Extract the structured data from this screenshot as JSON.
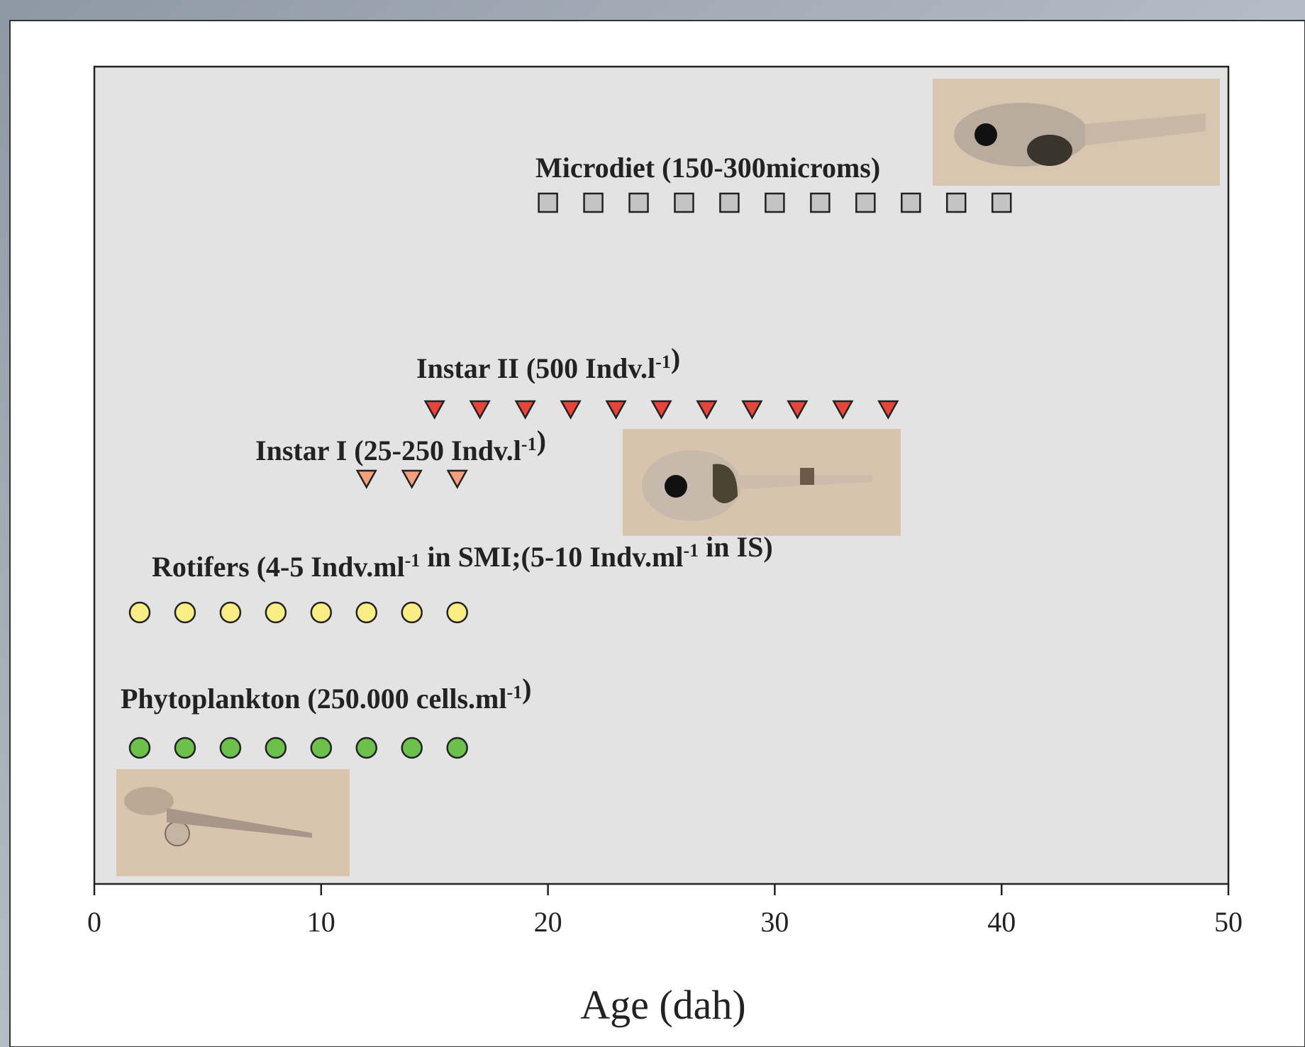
{
  "chart_data": {
    "type": "schedule",
    "x_label": "Age (dah)",
    "xlim": [
      0,
      50
    ],
    "xticks": [
      0,
      10,
      20,
      30,
      40,
      50
    ],
    "series": [
      {
        "label": [
          "Microdiet (150-300microms)"
        ],
        "marker": "square",
        "color": "#c4c4c4",
        "x": [
          20,
          22,
          24,
          26,
          28,
          30,
          32,
          34,
          36,
          38,
          40
        ]
      },
      {
        "label": [
          "Instar II (500 Indv.l",
          {
            "sup": "-1"
          },
          ")"
        ],
        "marker": "triangle",
        "color": "#e8443a",
        "x": [
          15,
          17,
          19,
          21,
          23,
          25,
          27,
          29,
          31,
          33,
          35
        ]
      },
      {
        "label": [
          "Instar I (25-250 Indv.l",
          {
            "sup": "-1"
          },
          ")"
        ],
        "marker": "triangle",
        "color": "#f4a07c",
        "x": [
          12,
          14,
          16
        ]
      },
      {
        "label": [
          "Rotifers (4-5 Indv.ml",
          {
            "sup": "-1"
          },
          " in SMI;(5-10 Indv.ml",
          {
            "sup": "-1"
          },
          " in IS)"
        ],
        "marker": "circle",
        "color": "#f8ee85",
        "x": [
          2,
          4,
          6,
          8,
          10,
          12,
          14,
          16
        ]
      },
      {
        "label": [
          "Phytoplankton (250.000 cells.ml",
          {
            "sup": "-1"
          },
          ")"
        ],
        "marker": "circle",
        "color": "#6cc04c",
        "x": [
          2,
          4,
          6,
          8,
          10,
          12,
          14,
          16
        ]
      }
    ]
  }
}
